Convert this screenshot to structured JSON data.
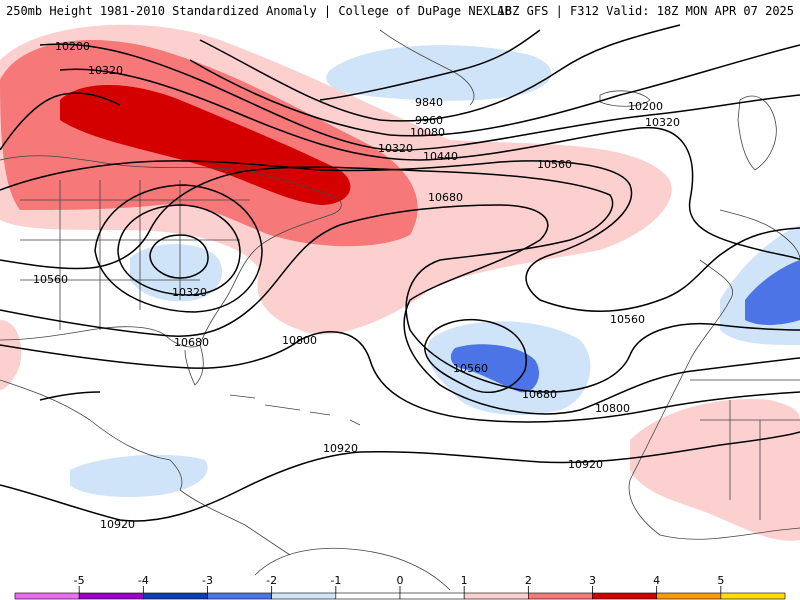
{
  "title": {
    "left": "250mb Height 1981-2010 Standardized Anomaly | College of DuPage NEXLAB",
    "right": "18Z GFS | F312 Valid: 18Z MON APR 07 2025"
  },
  "colors": {
    "pos1": "#fdd0d0",
    "pos2": "#f67878",
    "pos3": "#d40000",
    "neg1": "#cfe3f9",
    "neg2": "#4d74e6",
    "contour": "#000000",
    "border": "#444444"
  },
  "contour_labels": [
    {
      "text": "10200"
    },
    {
      "text": "10320"
    },
    {
      "text": "9840"
    },
    {
      "text": "9960"
    },
    {
      "text": "10080"
    },
    {
      "text": "10200"
    },
    {
      "text": "10320"
    },
    {
      "text": "10320"
    },
    {
      "text": "10440"
    },
    {
      "text": "10560"
    },
    {
      "text": "10680"
    },
    {
      "text": "10560"
    },
    {
      "text": "10320"
    },
    {
      "text": "10680"
    },
    {
      "text": "10800"
    },
    {
      "text": "10560"
    },
    {
      "text": "10560"
    },
    {
      "text": "10680"
    },
    {
      "text": "10800"
    },
    {
      "text": "10920"
    },
    {
      "text": "10920"
    },
    {
      "text": "10920"
    }
  ],
  "colorbar": {
    "ticks": [
      "-5",
      "-4",
      "-3",
      "-2",
      "-1",
      "0",
      "1",
      "2",
      "3",
      "4",
      "5"
    ],
    "colors": [
      "#ee6cf0",
      "#9b00cc",
      "#0a3fb5",
      "#4d74e6",
      "#cfe3f9",
      "#ffffff",
      "#ffffff",
      "#fdd0d0",
      "#f67878",
      "#d40000",
      "#ff9900",
      "#ffdd00"
    ]
  }
}
